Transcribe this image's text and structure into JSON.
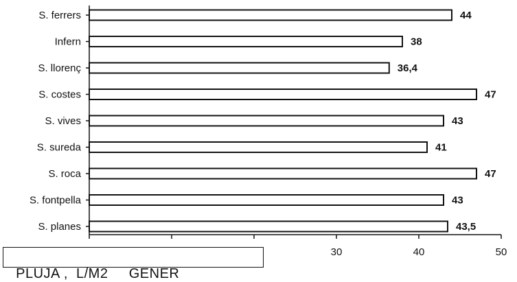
{
  "chart_data": {
    "type": "bar",
    "orientation": "horizontal",
    "categories": [
      "S. ferrers",
      "Infern",
      "S. llorenç",
      "S. costes",
      "S. vives",
      "S. sureda",
      "S. roca",
      "S. fontpella",
      "S. planes"
    ],
    "values": [
      44,
      38,
      36.4,
      47,
      43,
      41,
      47,
      43,
      43.5
    ],
    "value_labels": [
      "44",
      "38",
      "36,4",
      "47",
      "43",
      "41",
      "47",
      "43",
      "43,5"
    ],
    "xlim": [
      0,
      50
    ],
    "x_ticks": [
      30,
      40,
      50
    ],
    "title": "PLUJA ,  L/M2     GENER",
    "xlabel": "",
    "ylabel": "",
    "grid": false
  }
}
